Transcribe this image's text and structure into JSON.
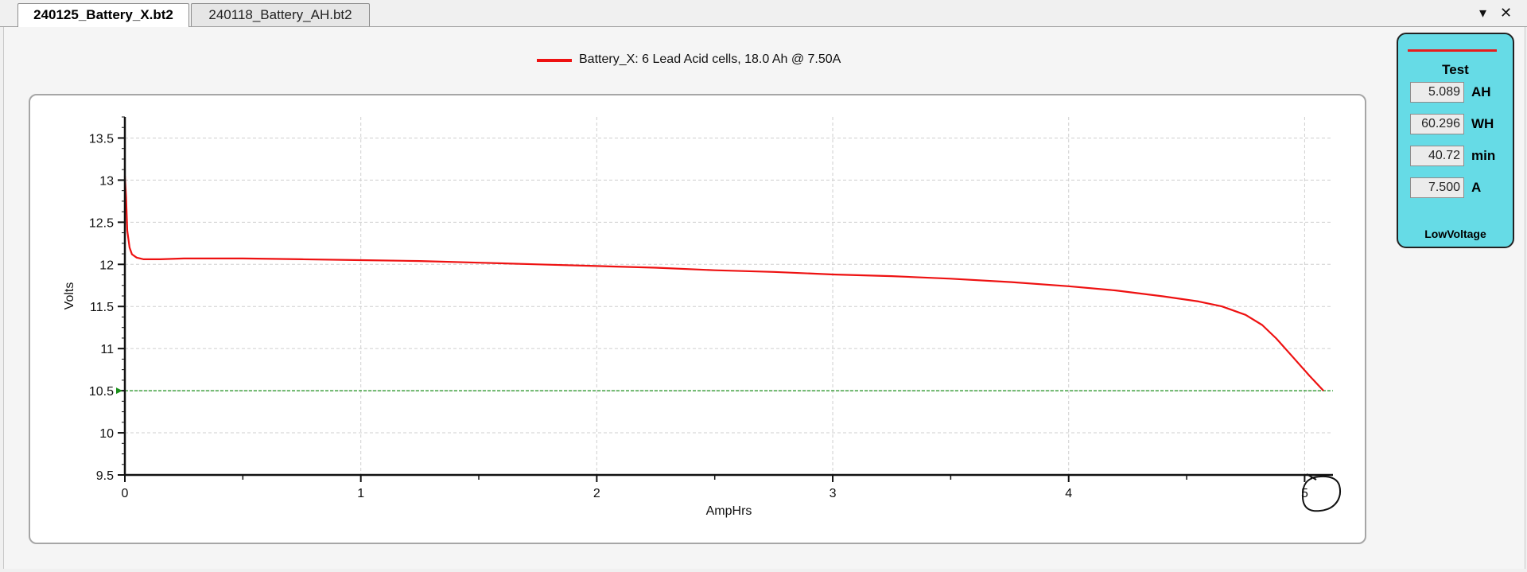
{
  "tabs": [
    {
      "label": "240125_Battery_X.bt2",
      "active": true
    },
    {
      "label": "240118_Battery_AH.bt2",
      "active": false
    }
  ],
  "window_controls": {
    "dropdown": "▾",
    "close": "✕"
  },
  "legend": {
    "text": "Battery_X: 6 Lead Acid cells, 18.0 Ah @ 7.50A",
    "color": "#ee1111"
  },
  "side_panel": {
    "title": "Test",
    "metrics": [
      {
        "value": "5.089",
        "unit": "AH"
      },
      {
        "value": "60.296",
        "unit": "WH"
      },
      {
        "value": "40.72",
        "unit": "min"
      },
      {
        "value": "7.500",
        "unit": "A"
      }
    ],
    "status": "LowVoltage",
    "background": "#66dbe6"
  },
  "chart_data": {
    "type": "line",
    "xlabel": "AmpHrs",
    "ylabel": "Volts",
    "xlim": [
      0,
      5.12
    ],
    "ylim": [
      9.5,
      13.75
    ],
    "x_ticks": [
      0,
      1,
      2,
      3,
      4,
      5
    ],
    "y_ticks": [
      9.5,
      10,
      10.5,
      11,
      11.5,
      12,
      12.5,
      13,
      13.5
    ],
    "grid": true,
    "series": [
      {
        "name": "Battery_X: 6 Lead Acid cells, 18.0 Ah @ 7.50A",
        "color": "#ee1111",
        "x": [
          0,
          0.005,
          0.01,
          0.02,
          0.03,
          0.05,
          0.08,
          0.15,
          0.25,
          0.5,
          0.75,
          1.0,
          1.25,
          1.5,
          1.75,
          2.0,
          2.25,
          2.5,
          2.75,
          3.0,
          3.25,
          3.5,
          3.75,
          4.0,
          4.2,
          4.4,
          4.55,
          4.65,
          4.75,
          4.82,
          4.88,
          4.95,
          5.02,
          5.08
        ],
        "y": [
          13.05,
          12.8,
          12.4,
          12.2,
          12.12,
          12.08,
          12.06,
          12.06,
          12.07,
          12.07,
          12.06,
          12.05,
          12.04,
          12.02,
          12.0,
          11.98,
          11.96,
          11.93,
          11.91,
          11.88,
          11.86,
          11.83,
          11.79,
          11.74,
          11.69,
          11.62,
          11.56,
          11.5,
          11.4,
          11.28,
          11.12,
          10.9,
          10.68,
          10.5
        ]
      }
    ],
    "threshold": {
      "y": 10.5,
      "color": "#1a8f1a"
    }
  }
}
